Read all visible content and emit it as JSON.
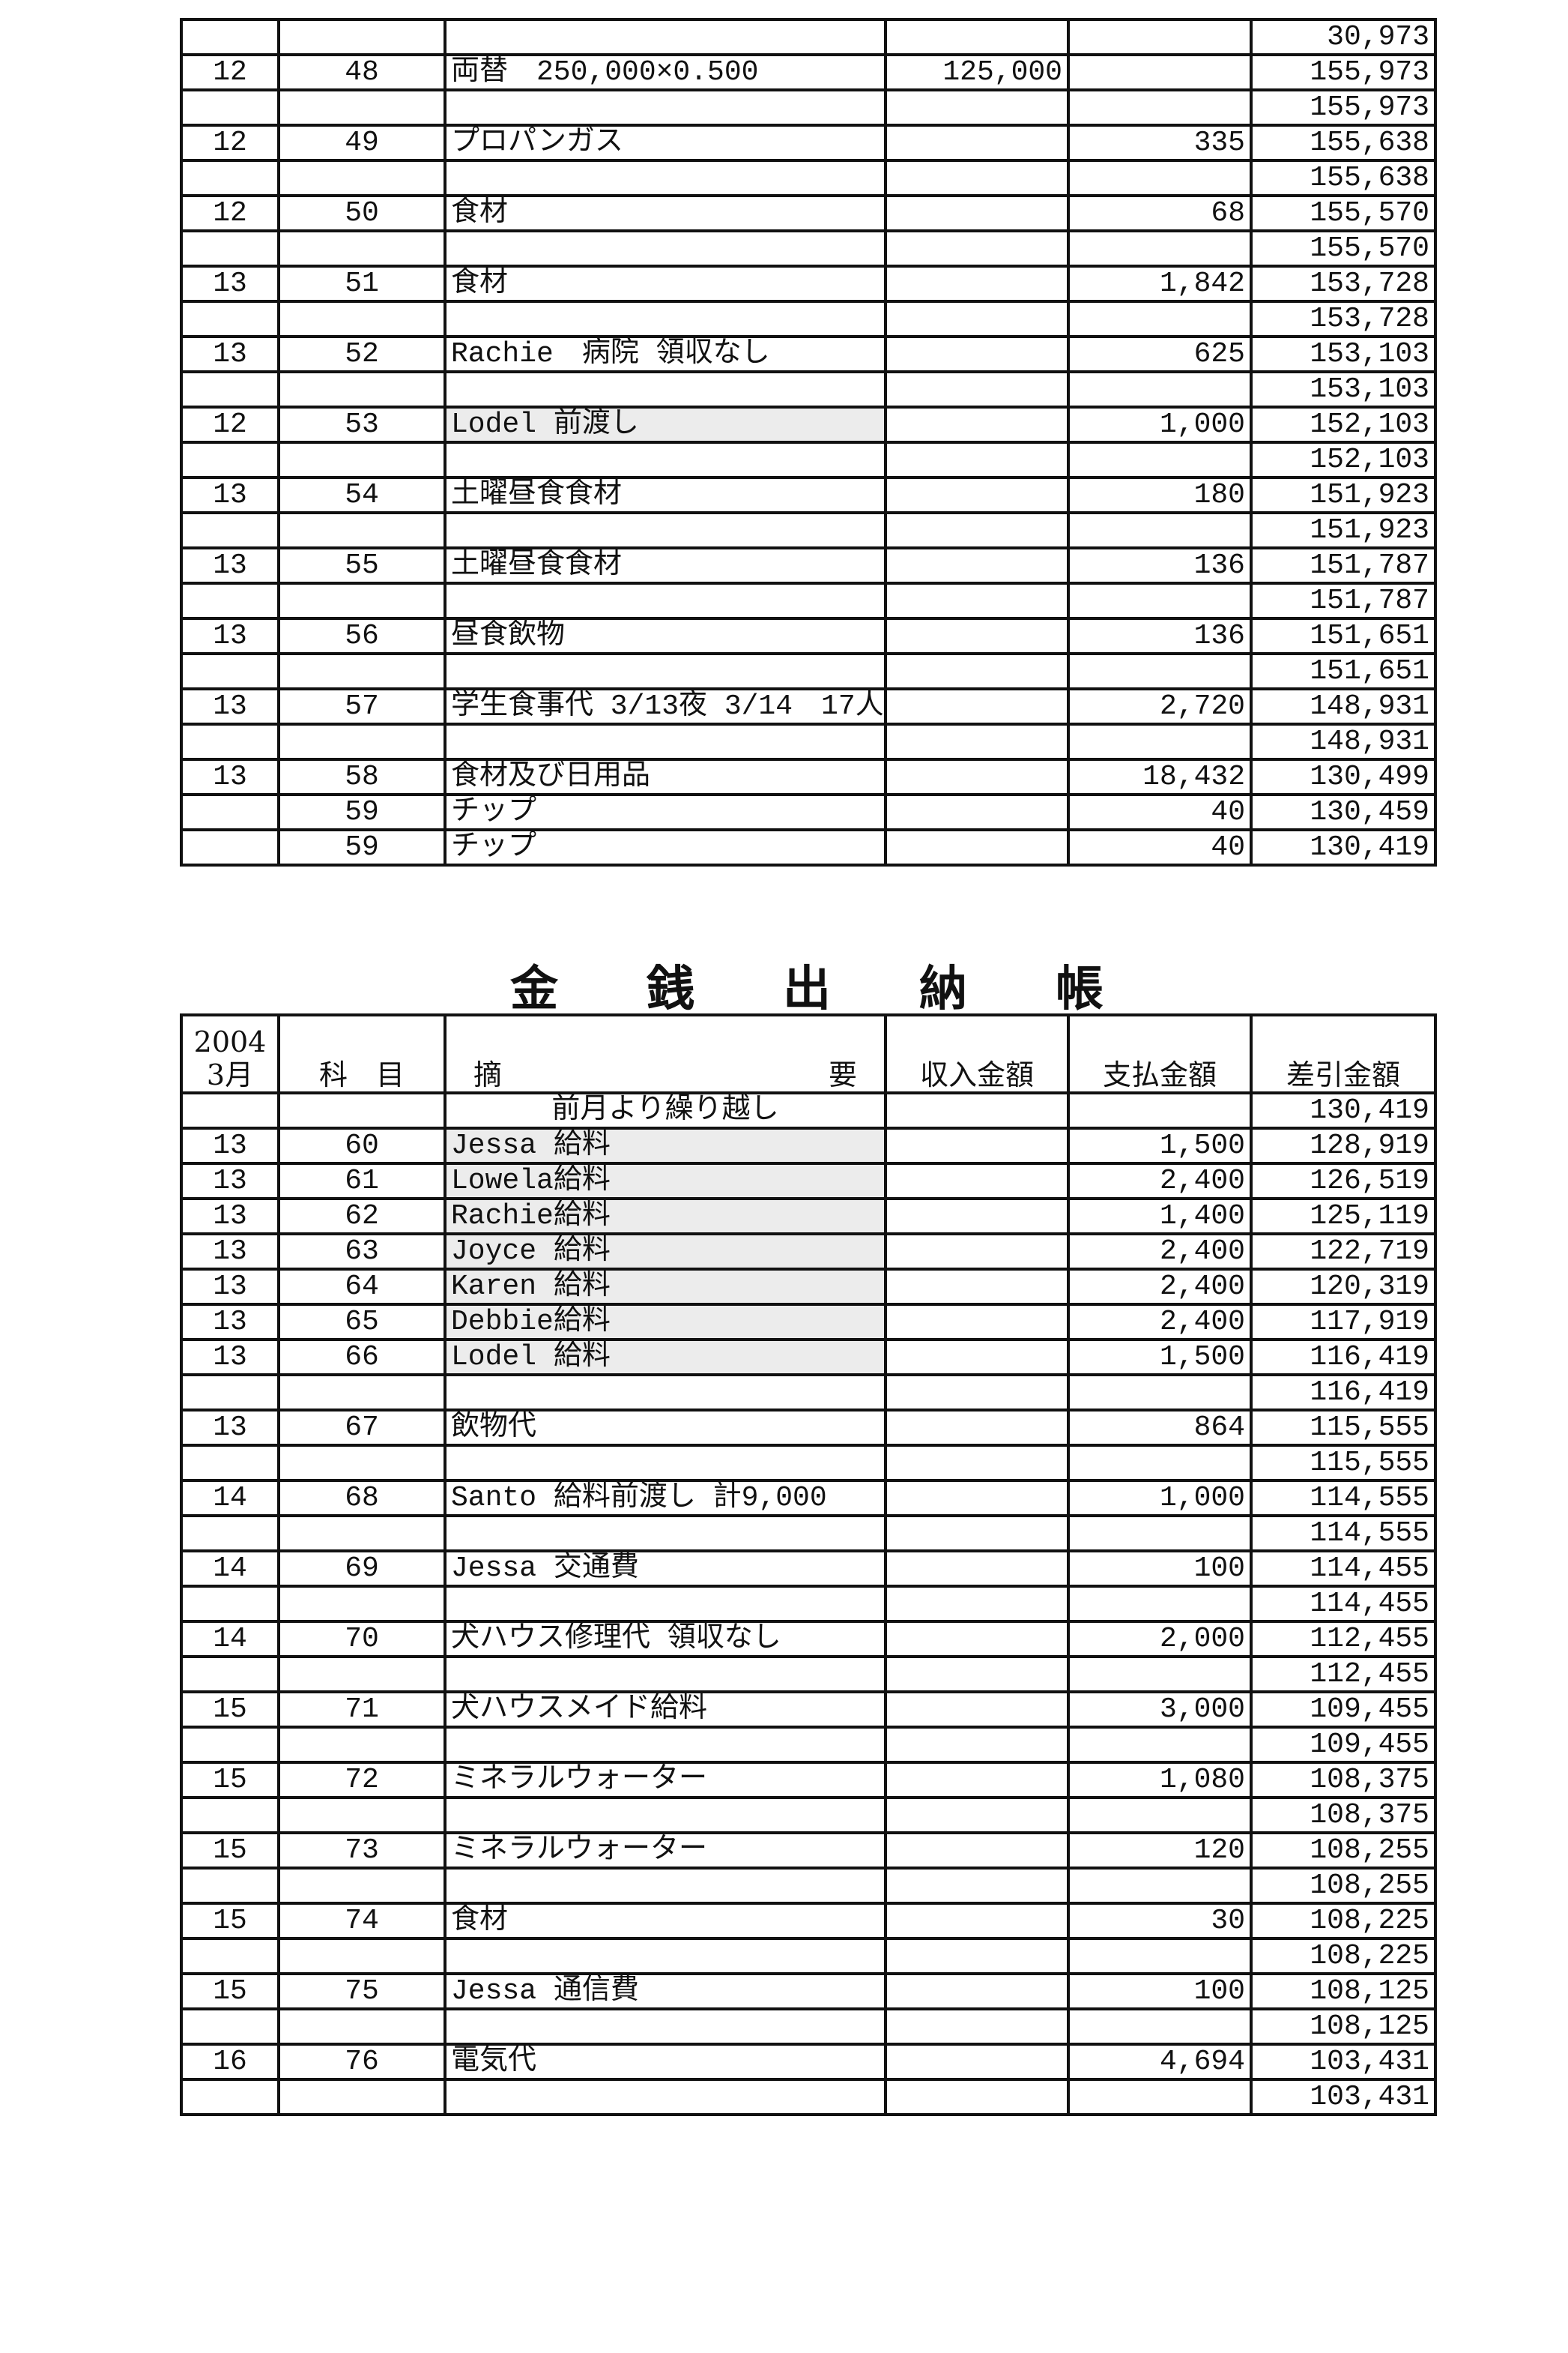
{
  "table1": {
    "rows": [
      [
        "",
        "",
        "",
        "",
        "",
        "30,973"
      ],
      [
        "12",
        "48",
        "両替　250,000×0.500",
        "125,000",
        "",
        "155,973"
      ],
      [
        "",
        "",
        "",
        "",
        "",
        "155,973"
      ],
      [
        "12",
        "49",
        "プロパンガス",
        "",
        "335",
        "155,638"
      ],
      [
        "",
        "",
        "",
        "",
        "",
        "155,638"
      ],
      [
        "12",
        "50",
        "食材",
        "",
        "68",
        "155,570"
      ],
      [
        "",
        "",
        "",
        "",
        "",
        "155,570"
      ],
      [
        "13",
        "51",
        "食材",
        "",
        "1,842",
        "153,728"
      ],
      [
        "",
        "",
        "",
        "",
        "",
        "153,728"
      ],
      [
        "13",
        "52",
        "Rachie　病院 領収なし",
        "",
        "625",
        "153,103"
      ],
      [
        "",
        "",
        "",
        "",
        "",
        "153,103"
      ],
      [
        "12",
        "53",
        "Lodel 前渡し",
        "",
        "1,000",
        "152,103"
      ],
      [
        "",
        "",
        "",
        "",
        "",
        "152,103"
      ],
      [
        "13",
        "54",
        "土曜昼食食材",
        "",
        "180",
        "151,923"
      ],
      [
        "",
        "",
        "",
        "",
        "",
        "151,923"
      ],
      [
        "13",
        "55",
        "土曜昼食食材",
        "",
        "136",
        "151,787"
      ],
      [
        "",
        "",
        "",
        "",
        "",
        "151,787"
      ],
      [
        "13",
        "56",
        "昼食飲物",
        "",
        "136",
        "151,651"
      ],
      [
        "",
        "",
        "",
        "",
        "",
        "151,651"
      ],
      [
        "13",
        "57",
        "学生食事代 3/13夜 3/14　17人",
        "",
        "2,720",
        "148,931"
      ],
      [
        "",
        "",
        "",
        "",
        "",
        "148,931"
      ],
      [
        "13",
        "58",
        "食材及び日用品",
        "",
        "18,432",
        "130,499"
      ],
      [
        "",
        "59",
        "チップ",
        "",
        "40",
        "130,459"
      ],
      [
        "",
        "59",
        "チップ",
        "",
        "40",
        "130,419"
      ]
    ],
    "shaded_rows": [
      11
    ]
  },
  "title_chars": [
    "金",
    "銭",
    "出",
    "納",
    "帳"
  ],
  "table2": {
    "header": {
      "year": "2004",
      "month": "3月",
      "account": "科　目",
      "desc_left": "摘",
      "desc_right": "要",
      "income": "収入金額",
      "payment": "支払金額",
      "balance": "差引金額"
    },
    "carry_over": {
      "label": "前月より繰り越し",
      "balance": "130,419"
    },
    "rows": [
      [
        "13",
        "60",
        "Jessa 給料",
        "",
        "1,500",
        "128,919"
      ],
      [
        "13",
        "61",
        "Lowela給料",
        "",
        "2,400",
        "126,519"
      ],
      [
        "13",
        "62",
        "Rachie給料",
        "",
        "1,400",
        "125,119"
      ],
      [
        "13",
        "63",
        "Joyce 給料",
        "",
        "2,400",
        "122,719"
      ],
      [
        "13",
        "64",
        "Karen 給料",
        "",
        "2,400",
        "120,319"
      ],
      [
        "13",
        "65",
        "Debbie給料",
        "",
        "2,400",
        "117,919"
      ],
      [
        "13",
        "66",
        "Lodel 給料",
        "",
        "1,500",
        "116,419"
      ],
      [
        "",
        "",
        "",
        "",
        "",
        "116,419"
      ],
      [
        "13",
        "67",
        "飲物代",
        "",
        "864",
        "115,555"
      ],
      [
        "",
        "",
        "",
        "",
        "",
        "115,555"
      ],
      [
        "14",
        "68",
        "Santo 給料前渡し 計9,000",
        "",
        "1,000",
        "114,555"
      ],
      [
        "",
        "",
        "",
        "",
        "",
        "114,555"
      ],
      [
        "14",
        "69",
        "Jessa 交通費",
        "",
        "100",
        "114,455"
      ],
      [
        "",
        "",
        "",
        "",
        "",
        "114,455"
      ],
      [
        "14",
        "70",
        "犬ハウス修理代 領収なし",
        "",
        "2,000",
        "112,455"
      ],
      [
        "",
        "",
        "",
        "",
        "",
        "112,455"
      ],
      [
        "15",
        "71",
        "犬ハウスメイド給料",
        "",
        "3,000",
        "109,455"
      ],
      [
        "",
        "",
        "",
        "",
        "",
        "109,455"
      ],
      [
        "15",
        "72",
        "ミネラルウォーター",
        "",
        "1,080",
        "108,375"
      ],
      [
        "",
        "",
        "",
        "",
        "",
        "108,375"
      ],
      [
        "15",
        "73",
        "ミネラルウォーター",
        "",
        "120",
        "108,255"
      ],
      [
        "",
        "",
        "",
        "",
        "",
        "108,255"
      ],
      [
        "15",
        "74",
        "食材",
        "",
        "30",
        "108,225"
      ],
      [
        "",
        "",
        "",
        "",
        "",
        "108,225"
      ],
      [
        "15",
        "75",
        "Jessa 通信費",
        "",
        "100",
        "108,125"
      ],
      [
        "",
        "",
        "",
        "",
        "",
        "108,125"
      ],
      [
        "16",
        "76",
        "電気代",
        "",
        "4,694",
        "103,431"
      ],
      [
        "",
        "",
        "",
        "",
        "",
        "103,431"
      ]
    ],
    "shaded_rows": [
      0,
      1,
      2,
      3,
      4,
      5,
      6
    ]
  }
}
